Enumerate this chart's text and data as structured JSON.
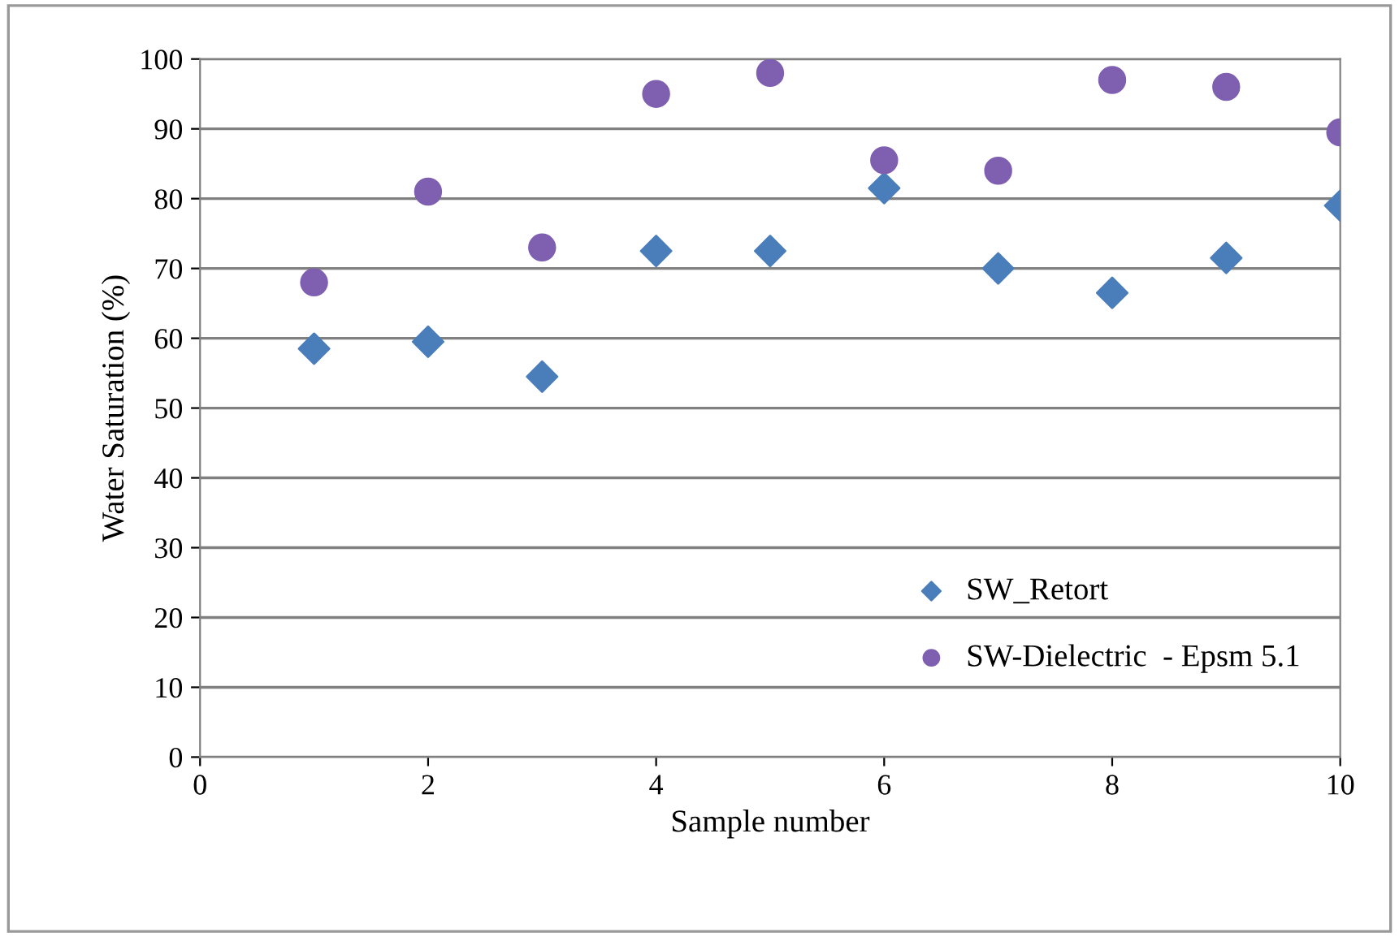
{
  "chart_data": {
    "type": "scatter",
    "xlabel": "Sample number",
    "ylabel": "Water Saturation (%)",
    "x": [
      1,
      2,
      3,
      4,
      5,
      6,
      7,
      8,
      9,
      10
    ],
    "series": [
      {
        "name": "SW_Retort",
        "color": "#4a7ebb",
        "marker": "diamond",
        "values": [
          58.5,
          59.5,
          54.5,
          72.5,
          72.5,
          81.5,
          70,
          66.5,
          71.5,
          79
        ]
      },
      {
        "name": "SW-Dielectric  - Epsm 5.1",
        "color": "#7e5fb0",
        "marker": "circle",
        "values": [
          68,
          81,
          73,
          95,
          98,
          85.5,
          84,
          97,
          96,
          89.5
        ]
      }
    ],
    "xlim": [
      0,
      10
    ],
    "xticks": [
      0,
      2,
      4,
      6,
      8,
      10
    ],
    "ylim": [
      0,
      100
    ],
    "yticks": [
      0,
      10,
      20,
      30,
      40,
      50,
      60,
      70,
      80,
      90,
      100
    ],
    "grid": "y",
    "legend": "bottom right"
  }
}
